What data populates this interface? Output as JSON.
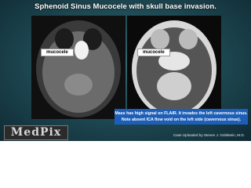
{
  "header": {
    "title": "Sphenoid Sinus Mucocele with skull base invasion."
  },
  "images": [
    {
      "label": "mucocele"
    },
    {
      "label": "mucocele"
    }
  ],
  "caption": {
    "lines": [
      "Mass has high signal on FLAIR.  It invades the left cavernous sinus.",
      "Note absent ICA flow void on the left side (cavernous sinus)."
    ]
  },
  "footer": {
    "logo": "MedPix",
    "credit": "Case Uploaded by Steven J. Goldstein, M.D."
  }
}
